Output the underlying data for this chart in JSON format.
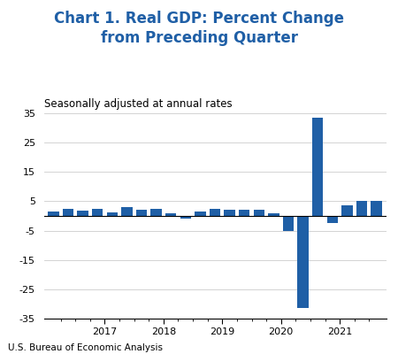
{
  "title": "Chart 1. Real GDP: Percent Change\nfrom Preceding Quarter",
  "subtitle": "Seasonally adjusted at annual rates",
  "source": "U.S. Bureau of Economic Analysis",
  "bar_color": "#1f5fa6",
  "background_color": "#ffffff",
  "ylim": [
    -35,
    35
  ],
  "yticks": [
    -35,
    -25,
    -15,
    -5,
    5,
    15,
    25,
    35
  ],
  "ytick_labels": [
    "-35",
    "-25",
    "-15",
    "-5",
    "5",
    "15",
    "25",
    "35"
  ],
  "values": [
    1.5,
    2.3,
    1.9,
    2.3,
    1.2,
    3.0,
    2.0,
    2.5,
    1.0,
    -0.9,
    1.5,
    2.5,
    2.0,
    2.0,
    2.0,
    1.0,
    -5.1,
    -31.4,
    33.4,
    -2.4,
    3.5,
    5.1,
    5.2
  ],
  "title_color": "#1f5fa6",
  "title_fontsize": 12,
  "subtitle_fontsize": 8.5,
  "source_fontsize": 7.5,
  "ytick_fontsize": 8,
  "xtick_fontsize": 8
}
